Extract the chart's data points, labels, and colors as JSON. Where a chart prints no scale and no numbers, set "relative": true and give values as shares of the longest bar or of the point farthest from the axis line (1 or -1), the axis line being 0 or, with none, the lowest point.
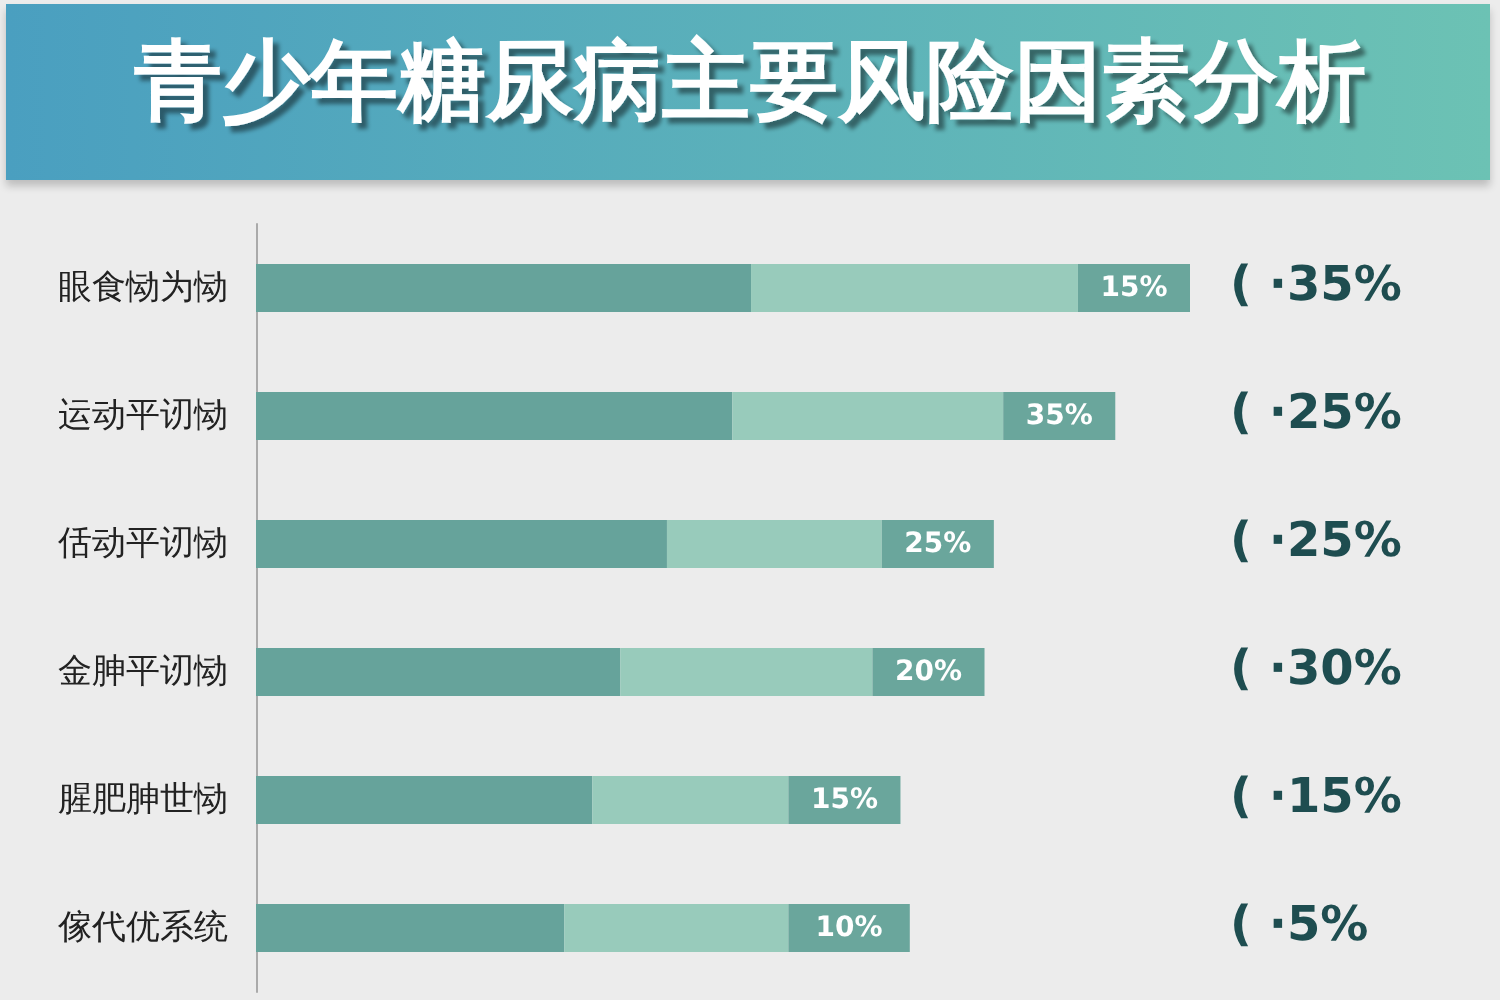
{
  "chart_data": {
    "type": "bar",
    "title": "青少年糖尿病主要风险因素分析",
    "orientation": "horizontal",
    "stacked": true,
    "relative": true,
    "categories": [
      "眼食恸为恸",
      "运动平讱恸",
      "佸动平讱恸",
      "金胂平讱恸",
      "腥肥胂世恸",
      "傢代优系统"
    ],
    "series": [
      {
        "color": "#66a39b",
        "values": [
          0.53,
          0.51,
          0.44,
          0.39,
          0.36,
          0.33
        ]
      },
      {
        "color": "#98cbbb",
        "values": [
          0.35,
          0.29,
          0.23,
          0.27,
          0.21,
          0.24
        ]
      },
      {
        "color": "#6aa69c",
        "values": [
          0.12,
          0.12,
          0.12,
          0.12,
          0.12,
          0.13
        ]
      }
    ],
    "annotations": [
      "( ·35%",
      "( ·25%",
      "( ·25%",
      "( ·30%",
      "( ·15%",
      "( ·5%",
      "15%",
      "35%",
      "25%",
      "20%",
      "15%",
      "10%"
    ]
  }
}
